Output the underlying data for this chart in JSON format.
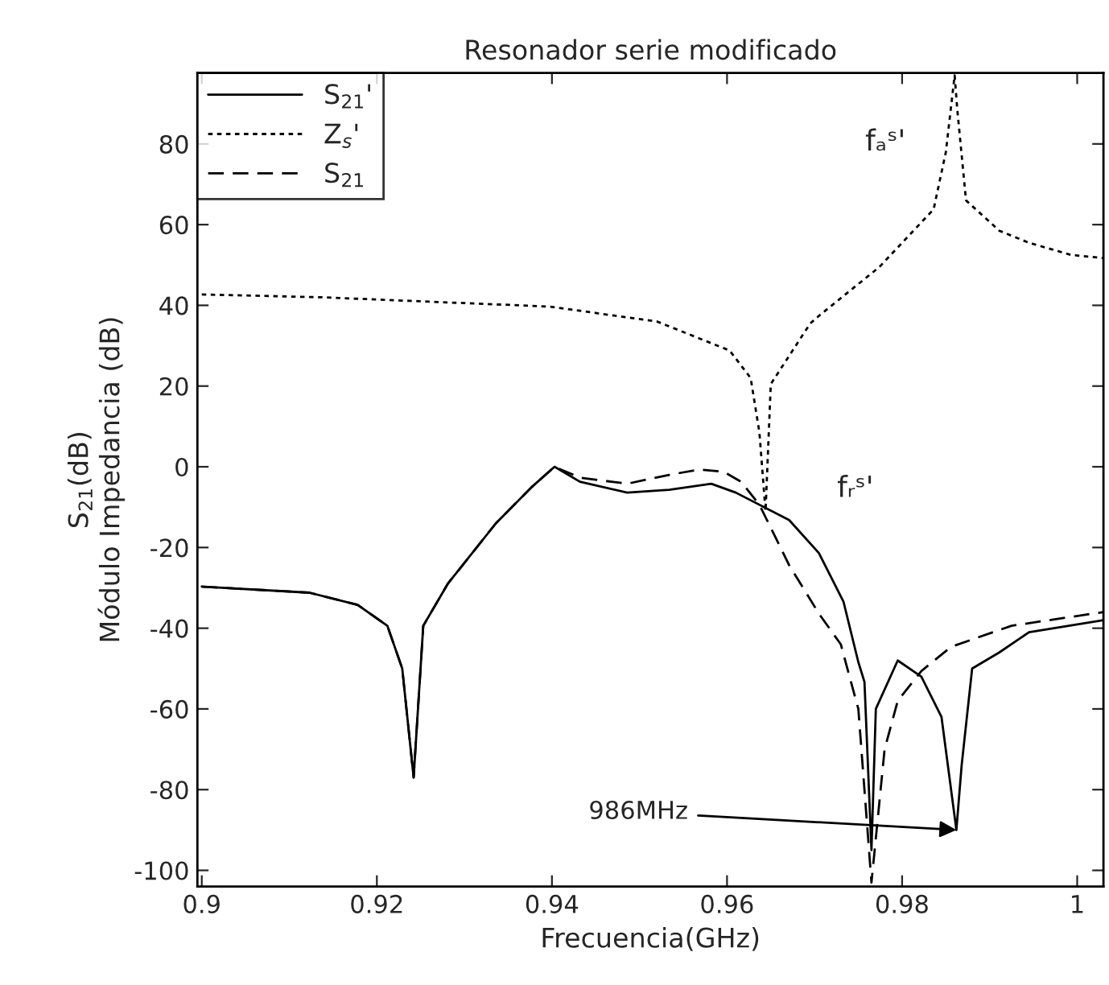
{
  "chart_data": {
    "type": "line",
    "title": "Resonador serie modificado",
    "xlabel": "Frecuencia(GHz)",
    "ylabel": "S$_{21}$(dB)\nMódulo Impedancia (dB)",
    "xlim": [
      0.8995,
      1.003
    ],
    "ylim": [
      -104,
      97.6
    ],
    "xticks": [
      0.9,
      0.92,
      0.94,
      0.96,
      0.98,
      {
        "value": 1.0,
        "label": "1"
      }
    ],
    "yticks": [
      -100,
      -80,
      -60,
      -40,
      -20,
      0,
      20,
      40,
      60,
      80
    ],
    "grid": false,
    "legend": "top left",
    "series": [
      {
        "name": "S$_{21}$'",
        "color": "#000000",
        "line_style": "solid",
        "x": [
          0.9,
          0.9123,
          0.9178,
          0.9212,
          0.9229,
          0.9242,
          0.9253,
          0.9281,
          0.9336,
          0.9377,
          0.9403,
          0.9432,
          0.9486,
          0.9534,
          0.9582,
          0.961,
          0.9671,
          0.9705,
          0.9733,
          0.975,
          0.9757,
          0.9765,
          0.977,
          0.9795,
          0.9822,
          0.9845,
          0.9862,
          0.9868,
          0.988,
          0.9911,
          0.9945,
          1.003
        ],
        "values": [
          -29.7,
          -31.2,
          -34.2,
          -39.4,
          -50,
          -77,
          -39.4,
          -29,
          -14,
          -5,
          0,
          -3.7,
          -6.4,
          -5.7,
          -4.2,
          -6.4,
          -13.2,
          -21.4,
          -33.4,
          -48.4,
          -53.3,
          -95,
          -60,
          -48,
          -52,
          -62,
          -90,
          -74,
          -50,
          -46,
          -41,
          -38
        ]
      },
      {
        "name": "Z$_{s}$'",
        "color": "#000000",
        "line_style": "dotted",
        "x": [
          0.9,
          0.9137,
          0.9397,
          0.952,
          0.9603,
          0.9627,
          0.9637,
          0.9644,
          0.965,
          0.9695,
          0.9705,
          0.9774,
          0.9836,
          0.985,
          0.986,
          0.9863,
          0.9873,
          0.9911,
          0.9945,
          0.9993,
          1.003
        ],
        "values": [
          42.7,
          42,
          39.7,
          36,
          28.8,
          22,
          8.5,
          -11,
          20.5,
          35.5,
          37.4,
          49.5,
          63.8,
          78,
          97,
          88.6,
          66,
          58.5,
          55.5,
          52.5,
          51.7
        ]
      },
      {
        "name": "S$_{21}$",
        "color": "#000000",
        "line_style": "dashed",
        "x": [
          0.9,
          0.9123,
          0.9178,
          0.9212,
          0.9229,
          0.9242,
          0.9253,
          0.9281,
          0.9336,
          0.9377,
          0.9403,
          0.9432,
          0.9486,
          0.9534,
          0.9568,
          0.9596,
          0.9616,
          0.9637,
          0.9671,
          0.9705,
          0.973,
          0.975,
          0.9765,
          0.978,
          0.9795,
          0.9822,
          0.9856,
          0.9925,
          1.003
        ],
        "values": [
          -29.7,
          -31.2,
          -34.2,
          -39.4,
          -50,
          -77,
          -39.4,
          -29,
          -14,
          -5,
          0,
          -2.7,
          -4.2,
          -2,
          -0.7,
          -1.2,
          -3.7,
          -9.4,
          -24.4,
          -36.4,
          -44,
          -60,
          -103,
          -70,
          -58,
          -50.6,
          -44.6,
          -39.4,
          -36
        ]
      }
    ],
    "annotations": [
      {
        "text": "fₐˢ'",
        "x": 0.986,
        "y": 97
      },
      {
        "text": "fᵣˢ'",
        "x": 0.9644,
        "y": -11
      },
      {
        "text": "986MHz",
        "x": 0.9862,
        "y": -90
      }
    ]
  }
}
